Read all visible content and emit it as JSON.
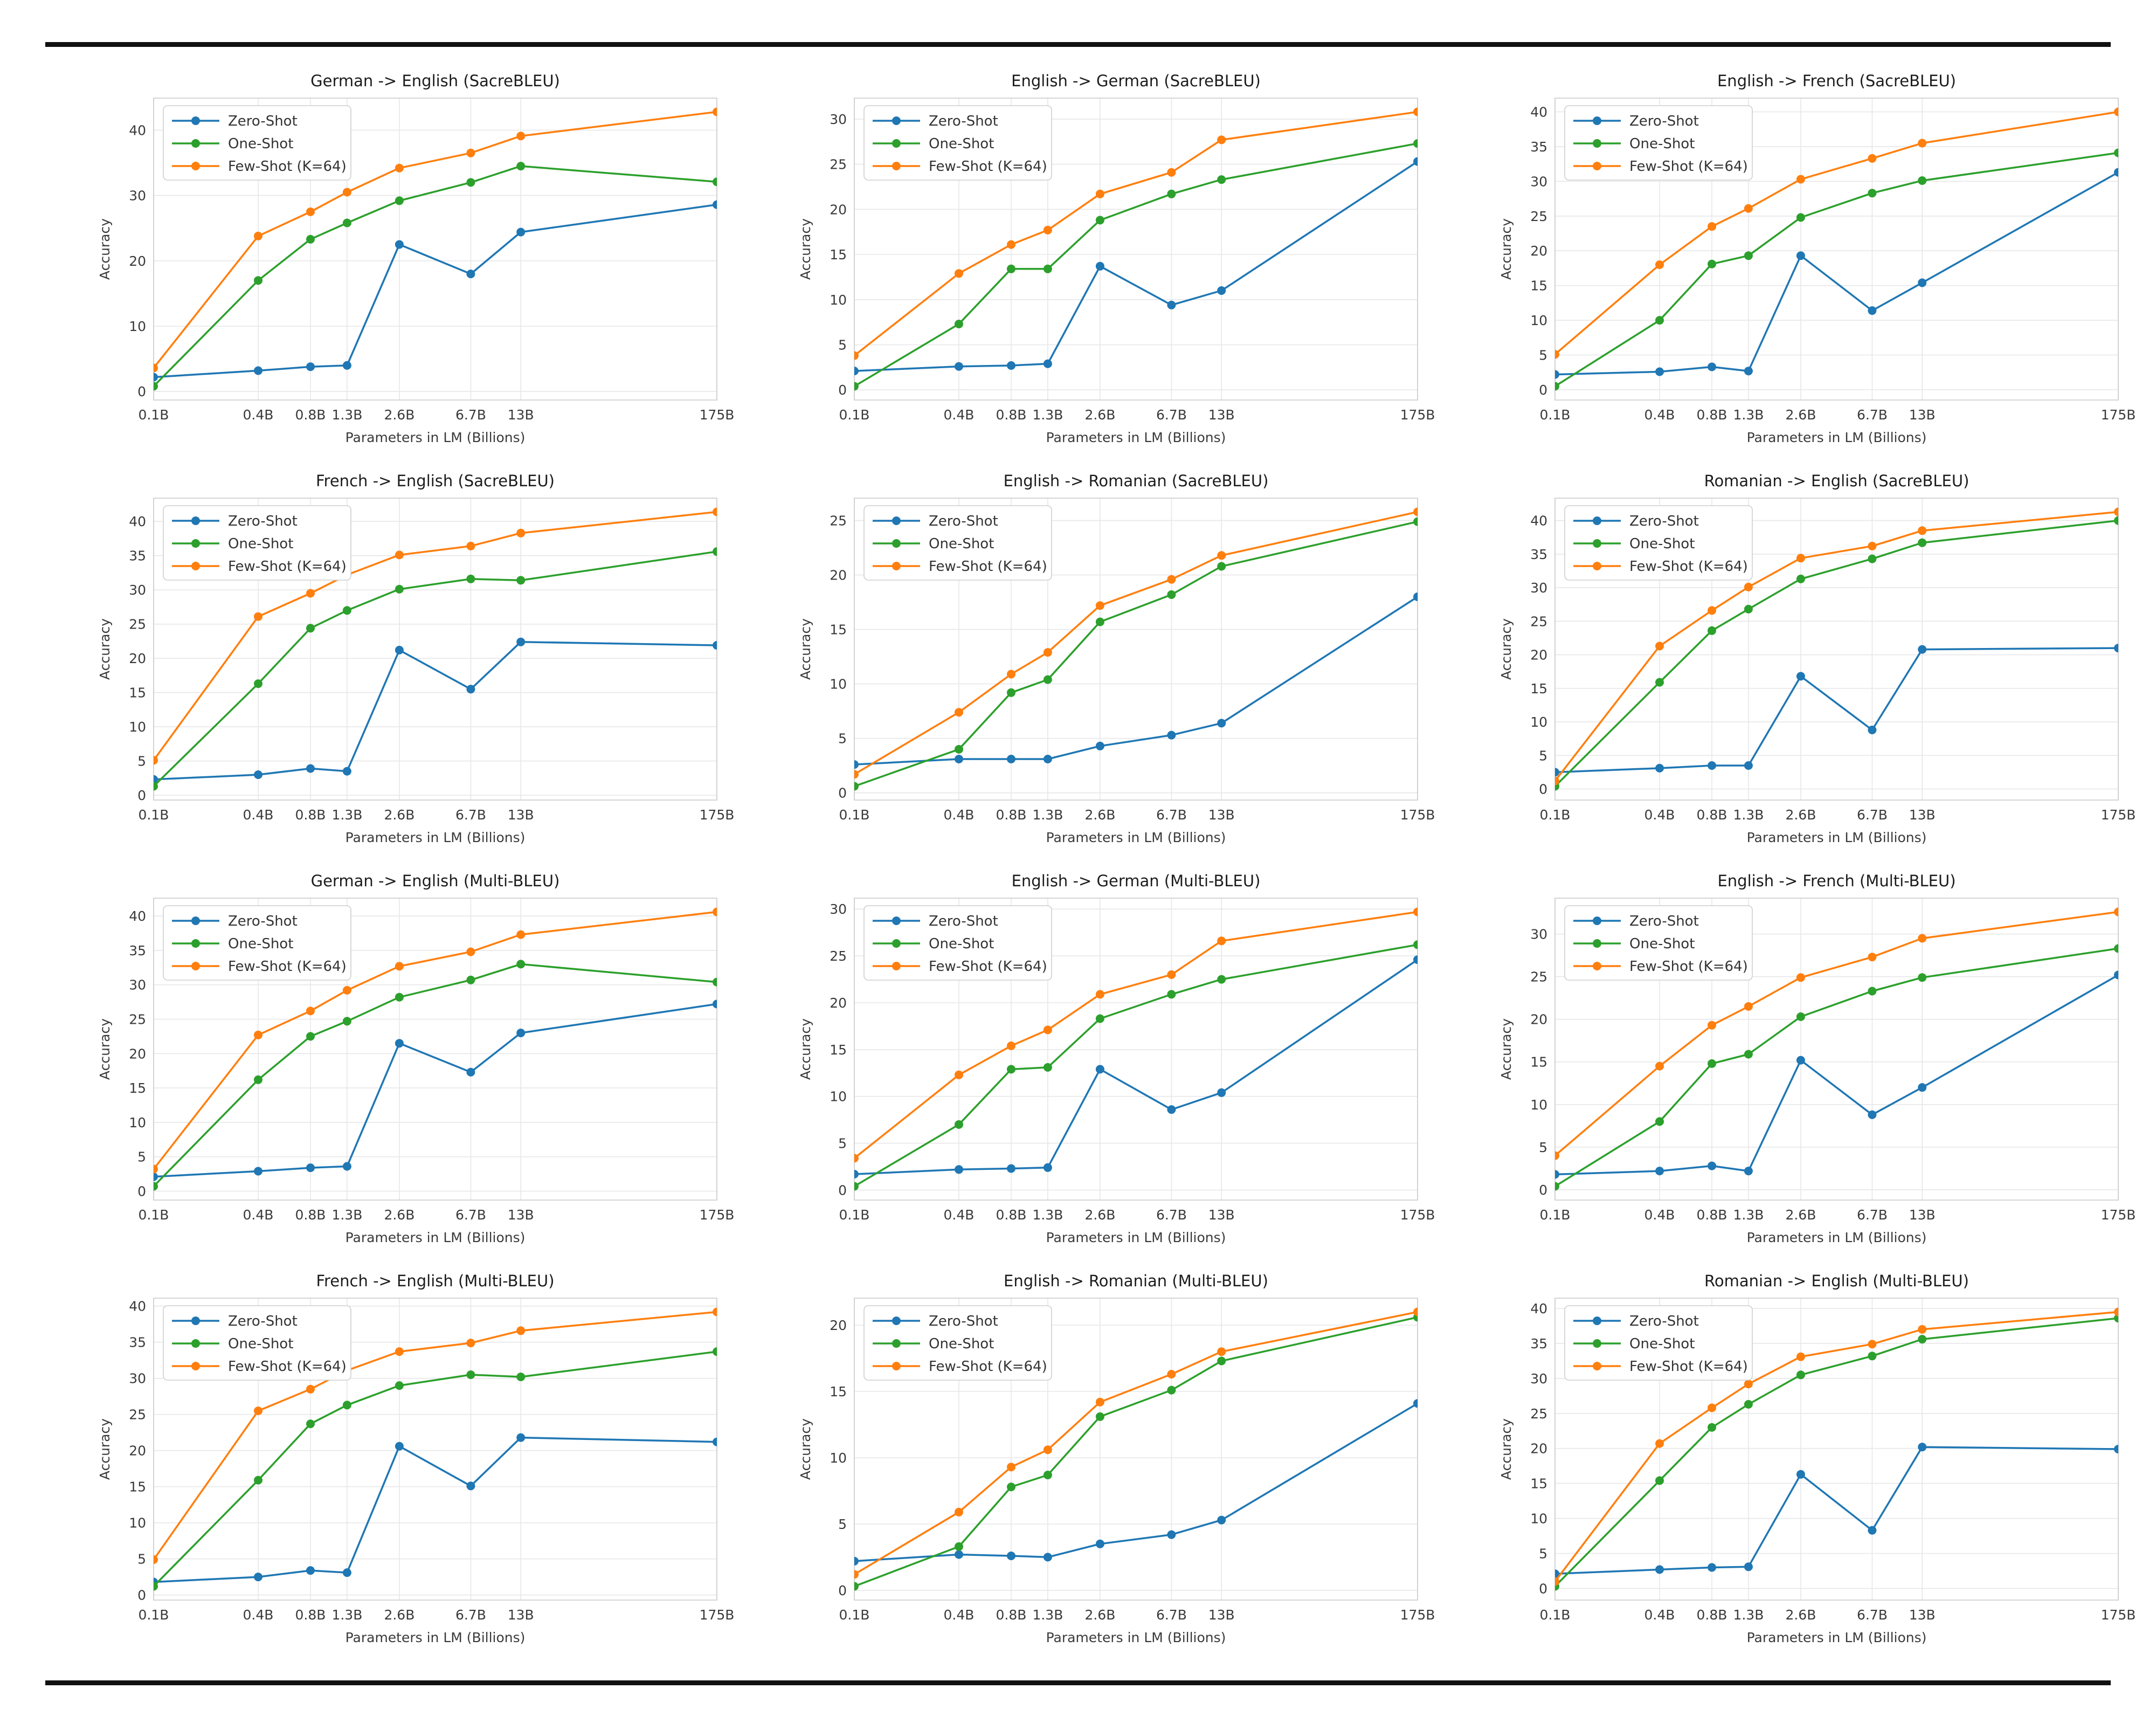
{
  "figure": {
    "description": "Translation BLEU score scaling curves across language model sizes",
    "legend_labels": [
      "Zero-Shot",
      "One-Shot",
      "Few-Shot (K=64)"
    ],
    "series_colors": {
      "zero_shot": "#1f77b4",
      "one_shot": "#2ca02c",
      "few_shot": "#ff7f0e"
    }
  },
  "chart_data": [
    {
      "type": "line",
      "title": "German -> English (SacreBLEU)",
      "xlabel": "Parameters in LM (Billions)",
      "ylabel": "Accuracy",
      "x_scale": "log",
      "grid": true,
      "legend_position": "upper-left",
      "x_values": [
        0.1,
        0.4,
        0.8,
        1.3,
        2.6,
        6.7,
        13,
        175
      ],
      "x_tick_labels": [
        "0.1B",
        "0.4B",
        "0.8B",
        "1.3B",
        "2.6B",
        "6.7B",
        "13B",
        "175B"
      ],
      "yticks": [
        0,
        10,
        20,
        30,
        40
      ],
      "series": [
        {
          "name": "Zero-Shot",
          "color": "#1f77b4",
          "values": [
            2.2,
            3.2,
            3.8,
            4.0,
            22.5,
            18.0,
            24.4,
            28.6
          ]
        },
        {
          "name": "One-Shot",
          "color": "#2ca02c",
          "values": [
            0.8,
            17.0,
            23.3,
            25.8,
            29.2,
            32.0,
            34.5,
            32.1
          ]
        },
        {
          "name": "Few-Shot (K=64)",
          "color": "#ff7f0e",
          "values": [
            3.6,
            23.8,
            27.5,
            30.5,
            34.2,
            36.5,
            39.1,
            42.8
          ]
        }
      ]
    },
    {
      "type": "line",
      "title": "English -> German (SacreBLEU)",
      "xlabel": "Parameters in LM (Billions)",
      "ylabel": "Accuracy",
      "x_scale": "log",
      "grid": true,
      "legend_position": "upper-left",
      "x_values": [
        0.1,
        0.4,
        0.8,
        1.3,
        2.6,
        6.7,
        13,
        175
      ],
      "x_tick_labels": [
        "0.1B",
        "0.4B",
        "0.8B",
        "1.3B",
        "2.6B",
        "6.7B",
        "13B",
        "175B"
      ],
      "yticks": [
        0,
        5,
        10,
        15,
        20,
        25,
        30
      ],
      "series": [
        {
          "name": "Zero-Shot",
          "color": "#1f77b4",
          "values": [
            2.1,
            2.6,
            2.7,
            2.9,
            13.7,
            9.4,
            11.0,
            25.3
          ]
        },
        {
          "name": "One-Shot",
          "color": "#2ca02c",
          "values": [
            0.4,
            7.3,
            13.4,
            13.4,
            18.8,
            21.7,
            23.3,
            27.3
          ]
        },
        {
          "name": "Few-Shot (K=64)",
          "color": "#ff7f0e",
          "values": [
            3.8,
            12.9,
            16.1,
            17.7,
            21.7,
            24.1,
            27.7,
            30.8
          ]
        }
      ]
    },
    {
      "type": "line",
      "title": "English -> French (SacreBLEU)",
      "xlabel": "Parameters in LM (Billions)",
      "ylabel": "Accuracy",
      "x_scale": "log",
      "grid": true,
      "legend_position": "upper-left",
      "x_values": [
        0.1,
        0.4,
        0.8,
        1.3,
        2.6,
        6.7,
        13,
        175
      ],
      "x_tick_labels": [
        "0.1B",
        "0.4B",
        "0.8B",
        "1.3B",
        "2.6B",
        "6.7B",
        "13B",
        "175B"
      ],
      "yticks": [
        0,
        5,
        10,
        15,
        20,
        25,
        30,
        35,
        40
      ],
      "series": [
        {
          "name": "Zero-Shot",
          "color": "#1f77b4",
          "values": [
            2.2,
            2.6,
            3.3,
            2.7,
            19.3,
            11.4,
            15.4,
            31.3
          ]
        },
        {
          "name": "One-Shot",
          "color": "#2ca02c",
          "values": [
            0.5,
            10.0,
            18.1,
            19.3,
            24.8,
            28.3,
            30.1,
            34.1
          ]
        },
        {
          "name": "Few-Shot (K=64)",
          "color": "#ff7f0e",
          "values": [
            5.1,
            18.0,
            23.5,
            26.1,
            30.3,
            33.3,
            35.5,
            40.0
          ]
        }
      ]
    },
    {
      "type": "line",
      "title": "French -> English (SacreBLEU)",
      "xlabel": "Parameters in LM (Billions)",
      "ylabel": "Accuracy",
      "x_scale": "log",
      "grid": true,
      "legend_position": "upper-left",
      "x_values": [
        0.1,
        0.4,
        0.8,
        1.3,
        2.6,
        6.7,
        13,
        175
      ],
      "x_tick_labels": [
        "0.1B",
        "0.4B",
        "0.8B",
        "1.3B",
        "2.6B",
        "6.7B",
        "13B",
        "175B"
      ],
      "yticks": [
        0,
        5,
        10,
        15,
        20,
        25,
        30,
        35,
        40
      ],
      "series": [
        {
          "name": "Zero-Shot",
          "color": "#1f77b4",
          "values": [
            2.3,
            3.0,
            3.9,
            3.5,
            21.2,
            15.5,
            22.4,
            21.9
          ]
        },
        {
          "name": "One-Shot",
          "color": "#2ca02c",
          "values": [
            1.3,
            16.3,
            24.4,
            27.0,
            30.1,
            31.6,
            31.4,
            35.6
          ]
        },
        {
          "name": "Few-Shot (K=64)",
          "color": "#ff7f0e",
          "values": [
            5.1,
            26.1,
            29.5,
            32.2,
            35.1,
            36.4,
            38.3,
            41.4
          ]
        }
      ]
    },
    {
      "type": "line",
      "title": "English -> Romanian (SacreBLEU)",
      "xlabel": "Parameters in LM (Billions)",
      "ylabel": "Accuracy",
      "x_scale": "log",
      "grid": true,
      "legend_position": "upper-left",
      "x_values": [
        0.1,
        0.4,
        0.8,
        1.3,
        2.6,
        6.7,
        13,
        175
      ],
      "x_tick_labels": [
        "0.1B",
        "0.4B",
        "0.8B",
        "1.3B",
        "2.6B",
        "6.7B",
        "13B",
        "175B"
      ],
      "yticks": [
        0,
        5,
        10,
        15,
        20,
        25
      ],
      "series": [
        {
          "name": "Zero-Shot",
          "color": "#1f77b4",
          "values": [
            2.6,
            3.1,
            3.1,
            3.1,
            4.3,
            5.3,
            6.4,
            18.0
          ]
        },
        {
          "name": "One-Shot",
          "color": "#2ca02c",
          "values": [
            0.6,
            4.0,
            9.2,
            10.4,
            15.7,
            18.2,
            20.8,
            24.9
          ]
        },
        {
          "name": "Few-Shot (K=64)",
          "color": "#ff7f0e",
          "values": [
            1.7,
            7.4,
            10.9,
            12.9,
            17.2,
            19.6,
            21.8,
            25.8
          ]
        }
      ]
    },
    {
      "type": "line",
      "title": "Romanian -> English (SacreBLEU)",
      "xlabel": "Parameters in LM (Billions)",
      "ylabel": "Accuracy",
      "x_scale": "log",
      "grid": true,
      "legend_position": "upper-left",
      "x_values": [
        0.1,
        0.4,
        0.8,
        1.3,
        2.6,
        6.7,
        13,
        175
      ],
      "x_tick_labels": [
        "0.1B",
        "0.4B",
        "0.8B",
        "1.3B",
        "2.6B",
        "6.7B",
        "13B",
        "175B"
      ],
      "yticks": [
        0,
        5,
        10,
        15,
        20,
        25,
        30,
        35,
        40
      ],
      "series": [
        {
          "name": "Zero-Shot",
          "color": "#1f77b4",
          "values": [
            2.5,
            3.1,
            3.5,
            3.5,
            16.8,
            8.8,
            20.8,
            21.0
          ]
        },
        {
          "name": "One-Shot",
          "color": "#2ca02c",
          "values": [
            0.4,
            15.9,
            23.6,
            26.8,
            31.3,
            34.3,
            36.7,
            40.0
          ]
        },
        {
          "name": "Few-Shot (K=64)",
          "color": "#ff7f0e",
          "values": [
            1.2,
            21.3,
            26.6,
            30.1,
            34.4,
            36.2,
            38.5,
            41.3
          ]
        }
      ]
    },
    {
      "type": "line",
      "title": "German -> English (Multi-BLEU)",
      "xlabel": "Parameters in LM (Billions)",
      "ylabel": "Accuracy",
      "x_scale": "log",
      "grid": true,
      "legend_position": "upper-left",
      "x_values": [
        0.1,
        0.4,
        0.8,
        1.3,
        2.6,
        6.7,
        13,
        175
      ],
      "x_tick_labels": [
        "0.1B",
        "0.4B",
        "0.8B",
        "1.3B",
        "2.6B",
        "6.7B",
        "13B",
        "175B"
      ],
      "yticks": [
        0,
        5,
        10,
        15,
        20,
        25,
        30,
        35,
        40
      ],
      "series": [
        {
          "name": "Zero-Shot",
          "color": "#1f77b4",
          "values": [
            2.1,
            2.9,
            3.4,
            3.6,
            21.5,
            17.3,
            23.0,
            27.2
          ]
        },
        {
          "name": "One-Shot",
          "color": "#2ca02c",
          "values": [
            0.7,
            16.2,
            22.5,
            24.7,
            28.2,
            30.7,
            33.0,
            30.4
          ]
        },
        {
          "name": "Few-Shot (K=64)",
          "color": "#ff7f0e",
          "values": [
            3.2,
            22.7,
            26.2,
            29.2,
            32.7,
            34.8,
            37.3,
            40.6
          ]
        }
      ]
    },
    {
      "type": "line",
      "title": "English -> German (Multi-BLEU)",
      "xlabel": "Parameters in LM (Billions)",
      "ylabel": "Accuracy",
      "x_scale": "log",
      "grid": true,
      "legend_position": "upper-left",
      "x_values": [
        0.1,
        0.4,
        0.8,
        1.3,
        2.6,
        6.7,
        13,
        175
      ],
      "x_tick_labels": [
        "0.1B",
        "0.4B",
        "0.8B",
        "1.3B",
        "2.6B",
        "6.7B",
        "13B",
        "175B"
      ],
      "yticks": [
        0,
        5,
        10,
        15,
        20,
        25,
        30
      ],
      "series": [
        {
          "name": "Zero-Shot",
          "color": "#1f77b4",
          "values": [
            1.7,
            2.2,
            2.3,
            2.4,
            12.9,
            8.6,
            10.4,
            24.6
          ]
        },
        {
          "name": "One-Shot",
          "color": "#2ca02c",
          "values": [
            0.4,
            7.0,
            12.9,
            13.1,
            18.3,
            20.9,
            22.5,
            26.2
          ]
        },
        {
          "name": "Few-Shot (K=64)",
          "color": "#ff7f0e",
          "values": [
            3.4,
            12.3,
            15.4,
            17.1,
            20.9,
            23.0,
            26.6,
            29.7
          ]
        }
      ]
    },
    {
      "type": "line",
      "title": "English -> French (Multi-BLEU)",
      "xlabel": "Parameters in LM (Billions)",
      "ylabel": "Accuracy",
      "x_scale": "log",
      "grid": true,
      "legend_position": "upper-left",
      "x_values": [
        0.1,
        0.4,
        0.8,
        1.3,
        2.6,
        6.7,
        13,
        175
      ],
      "x_tick_labels": [
        "0.1B",
        "0.4B",
        "0.8B",
        "1.3B",
        "2.6B",
        "6.7B",
        "13B",
        "175B"
      ],
      "yticks": [
        0,
        5,
        10,
        15,
        20,
        25,
        30
      ],
      "series": [
        {
          "name": "Zero-Shot",
          "color": "#1f77b4",
          "values": [
            1.8,
            2.2,
            2.8,
            2.2,
            15.2,
            8.8,
            12.0,
            25.2
          ]
        },
        {
          "name": "One-Shot",
          "color": "#2ca02c",
          "values": [
            0.4,
            8.0,
            14.8,
            15.9,
            20.3,
            23.3,
            24.9,
            28.3
          ]
        },
        {
          "name": "Few-Shot (K=64)",
          "color": "#ff7f0e",
          "values": [
            4.0,
            14.5,
            19.3,
            21.5,
            24.9,
            27.3,
            29.5,
            32.6
          ]
        }
      ]
    },
    {
      "type": "line",
      "title": "French -> English (Multi-BLEU)",
      "xlabel": "Parameters in LM (Billions)",
      "ylabel": "Accuracy",
      "x_scale": "log",
      "grid": true,
      "legend_position": "upper-left",
      "x_values": [
        0.1,
        0.4,
        0.8,
        1.3,
        2.6,
        6.7,
        13,
        175
      ],
      "x_tick_labels": [
        "0.1B",
        "0.4B",
        "0.8B",
        "1.3B",
        "2.6B",
        "6.7B",
        "13B",
        "175B"
      ],
      "yticks": [
        0,
        5,
        10,
        15,
        20,
        25,
        30,
        35,
        40
      ],
      "series": [
        {
          "name": "Zero-Shot",
          "color": "#1f77b4",
          "values": [
            1.8,
            2.5,
            3.4,
            3.1,
            20.6,
            15.1,
            21.8,
            21.2
          ]
        },
        {
          "name": "One-Shot",
          "color": "#2ca02c",
          "values": [
            1.2,
            15.9,
            23.7,
            26.3,
            29.0,
            30.5,
            30.2,
            33.7
          ]
        },
        {
          "name": "Few-Shot (K=64)",
          "color": "#ff7f0e",
          "values": [
            4.9,
            25.5,
            28.5,
            31.1,
            33.7,
            34.9,
            36.6,
            39.2
          ]
        }
      ]
    },
    {
      "type": "line",
      "title": "English -> Romanian (Multi-BLEU)",
      "xlabel": "Parameters in LM (Billions)",
      "ylabel": "Accuracy",
      "x_scale": "log",
      "grid": true,
      "legend_position": "upper-left",
      "x_values": [
        0.1,
        0.4,
        0.8,
        1.3,
        2.6,
        6.7,
        13,
        175
      ],
      "x_tick_labels": [
        "0.1B",
        "0.4B",
        "0.8B",
        "1.3B",
        "2.6B",
        "6.7B",
        "13B",
        "175B"
      ],
      "yticks": [
        0,
        5,
        10,
        15,
        20
      ],
      "series": [
        {
          "name": "Zero-Shot",
          "color": "#1f77b4",
          "values": [
            2.2,
            2.7,
            2.6,
            2.5,
            3.5,
            4.2,
            5.3,
            14.1
          ]
        },
        {
          "name": "One-Shot",
          "color": "#2ca02c",
          "values": [
            0.3,
            3.3,
            7.8,
            8.7,
            13.1,
            15.1,
            17.3,
            20.6
          ]
        },
        {
          "name": "Few-Shot (K=64)",
          "color": "#ff7f0e",
          "values": [
            1.2,
            5.9,
            9.3,
            10.6,
            14.2,
            16.3,
            18.0,
            21.0
          ]
        }
      ]
    },
    {
      "type": "line",
      "title": "Romanian -> English (Multi-BLEU)",
      "xlabel": "Parameters in LM (Billions)",
      "ylabel": "Accuracy",
      "x_scale": "log",
      "grid": true,
      "legend_position": "upper-left",
      "x_values": [
        0.1,
        0.4,
        0.8,
        1.3,
        2.6,
        6.7,
        13,
        175
      ],
      "x_tick_labels": [
        "0.1B",
        "0.4B",
        "0.8B",
        "1.3B",
        "2.6B",
        "6.7B",
        "13B",
        "175B"
      ],
      "yticks": [
        0,
        5,
        10,
        15,
        20,
        25,
        30,
        35,
        40
      ],
      "series": [
        {
          "name": "Zero-Shot",
          "color": "#1f77b4",
          "values": [
            2.1,
            2.7,
            3.0,
            3.1,
            16.3,
            8.3,
            20.2,
            19.9
          ]
        },
        {
          "name": "One-Shot",
          "color": "#2ca02c",
          "values": [
            0.3,
            15.4,
            23.0,
            26.3,
            30.5,
            33.2,
            35.6,
            38.6
          ]
        },
        {
          "name": "Few-Shot (K=64)",
          "color": "#ff7f0e",
          "values": [
            1.0,
            20.7,
            25.8,
            29.2,
            33.1,
            34.9,
            37.0,
            39.5
          ]
        }
      ]
    }
  ]
}
